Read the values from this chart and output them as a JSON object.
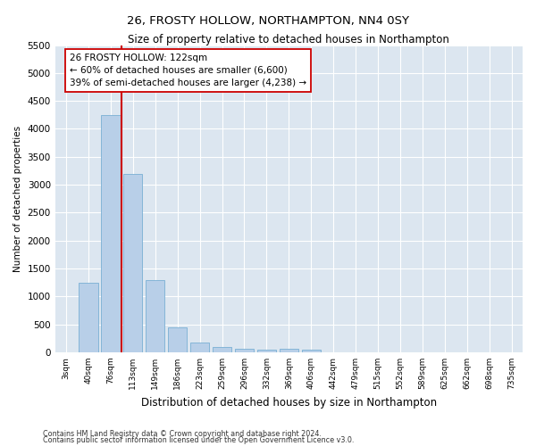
{
  "title": "26, FROSTY HOLLOW, NORTHAMPTON, NN4 0SY",
  "subtitle": "Size of property relative to detached houses in Northampton",
  "xlabel": "Distribution of detached houses by size in Northampton",
  "ylabel": "Number of detached properties",
  "bar_color": "#b8cfe8",
  "bar_edge_color": "#7aafd4",
  "background_color": "#dce6f0",
  "categories": [
    "3sqm",
    "40sqm",
    "76sqm",
    "113sqm",
    "149sqm",
    "186sqm",
    "223sqm",
    "259sqm",
    "296sqm",
    "332sqm",
    "369sqm",
    "406sqm",
    "442sqm",
    "479sqm",
    "515sqm",
    "552sqm",
    "589sqm",
    "625sqm",
    "662sqm",
    "698sqm",
    "735sqm"
  ],
  "values": [
    0,
    1250,
    4250,
    3200,
    1300,
    450,
    180,
    90,
    60,
    50,
    55,
    50,
    0,
    0,
    0,
    0,
    0,
    0,
    0,
    0,
    0
  ],
  "property_line_index": 2.5,
  "property_line_color": "#cc0000",
  "annotation_text": "26 FROSTY HOLLOW: 122sqm\n← 60% of detached houses are smaller (6,600)\n39% of semi-detached houses are larger (4,238) →",
  "annotation_box_color": "#ffffff",
  "annotation_box_edge_color": "#cc0000",
  "footer_line1": "Contains HM Land Registry data © Crown copyright and database right 2024.",
  "footer_line2": "Contains public sector information licensed under the Open Government Licence v3.0.",
  "ylim": [
    0,
    5500
  ],
  "yticks": [
    0,
    500,
    1000,
    1500,
    2000,
    2500,
    3000,
    3500,
    4000,
    4500,
    5000,
    5500
  ],
  "figsize": [
    6.0,
    5.0
  ],
  "dpi": 100
}
